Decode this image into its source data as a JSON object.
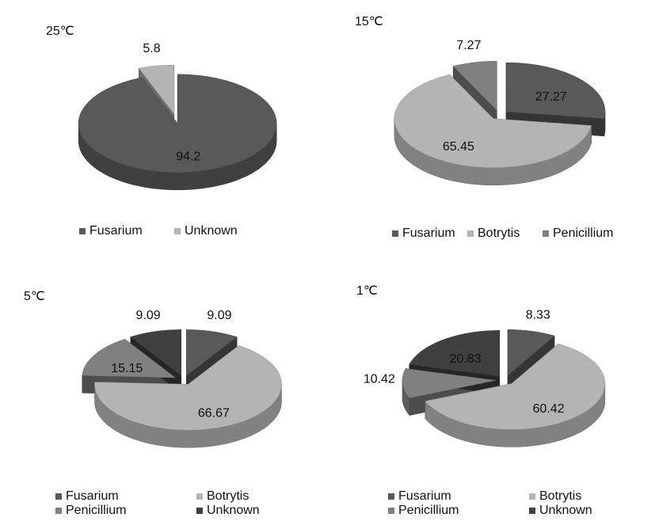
{
  "chart_data": [
    {
      "type": "pie",
      "title": "25℃",
      "categories": [
        "Fusarium",
        "Unknown"
      ],
      "values": [
        94.2,
        5.8
      ],
      "colors": [
        "#595959",
        "#b4b4b4"
      ]
    },
    {
      "type": "pie",
      "title": "15℃",
      "categories": [
        "Fusarium",
        "Botrytis",
        "Penicillium"
      ],
      "values": [
        27.27,
        65.45,
        7.27
      ],
      "colors": [
        "#595959",
        "#b4b4b4",
        "#808080"
      ]
    },
    {
      "type": "pie",
      "title": "5℃",
      "categories": [
        "Fusarium",
        "Botrytis",
        "Penicillium",
        "Unknown"
      ],
      "values": [
        9.09,
        66.67,
        15.15,
        9.09
      ],
      "colors": [
        "#595959",
        "#b4b4b4",
        "#808080",
        "#404040"
      ]
    },
    {
      "type": "pie",
      "title": "1℃",
      "categories": [
        "Fusarium",
        "Botrytis",
        "Penicillium",
        "Unknown"
      ],
      "values": [
        8.33,
        60.42,
        10.42,
        20.83
      ],
      "colors": [
        "#595959",
        "#b4b4b4",
        "#808080",
        "#404040"
      ]
    }
  ]
}
